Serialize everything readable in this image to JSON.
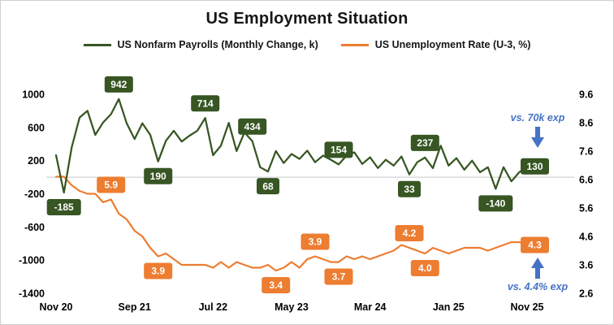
{
  "colors": {
    "payrolls": "#375623",
    "unemployment": "#ED7D31",
    "annotation_blue": "#4472C4"
  },
  "chart_data": {
    "type": "line",
    "title": "US Employment Situation",
    "legend_position": "top",
    "grid": "zero-line-only",
    "zero_line_value": 0,
    "x_axis": {
      "unit": "month",
      "tick_labels": [
        "Nov 20",
        "Sep 21",
        "Jul 22",
        "May 23",
        "Mar 24",
        "Jan 25",
        "Nov 25"
      ],
      "tick_indices": [
        0,
        10,
        20,
        30,
        40,
        50,
        60
      ]
    },
    "left_axis": {
      "tick_labels": [
        "1000",
        "600",
        "200",
        "-200",
        "-600",
        "-1000",
        "-1400"
      ],
      "tick_values": [
        1000,
        600,
        200,
        -200,
        -600,
        -1000,
        -1400
      ],
      "range": [
        -1400,
        1000
      ]
    },
    "right_axis": {
      "tick_labels": [
        "9.6",
        "8.6",
        "7.6",
        "6.6",
        "5.6",
        "4.6",
        "3.6",
        "2.6"
      ],
      "tick_values": [
        9.6,
        8.6,
        7.6,
        6.6,
        5.6,
        4.6,
        3.6,
        2.6
      ],
      "range": [
        2.6,
        9.6
      ]
    },
    "series": [
      {
        "name": "US Nonfarm Payrolls (Monthly Change, k)",
        "color": "#375623",
        "axis": "left",
        "values": [
          265,
          -185,
          360,
          720,
          800,
          510,
          660,
          760,
          942,
          650,
          460,
          650,
          510,
          190,
          440,
          560,
          430,
          500,
          560,
          714,
          265,
          380,
          655,
          315,
          540,
          434,
          120,
          68,
          315,
          170,
          280,
          220,
          320,
          180,
          260,
          210,
          154,
          260,
          300,
          160,
          240,
          110,
          210,
          140,
          250,
          33,
          180,
          237,
          110,
          380,
          140,
          230,
          90,
          200,
          60,
          120,
          -140,
          120,
          -50,
          60,
          130
        ]
      },
      {
        "name": "US Unemployment Rate (U-3, %)",
        "color": "#ED7D31",
        "axis": "right",
        "values": [
          6.7,
          6.7,
          6.4,
          6.2,
          6.1,
          6.1,
          5.8,
          5.9,
          5.4,
          5.2,
          4.8,
          4.6,
          4.2,
          3.9,
          4.0,
          3.8,
          3.6,
          3.6,
          3.6,
          3.6,
          3.5,
          3.7,
          3.5,
          3.7,
          3.6,
          3.5,
          3.5,
          3.6,
          3.4,
          3.5,
          3.7,
          3.5,
          3.8,
          3.9,
          3.8,
          3.7,
          3.7,
          3.9,
          3.8,
          3.9,
          3.8,
          3.9,
          4.0,
          4.1,
          4.3,
          4.2,
          4.1,
          4.0,
          4.2,
          4.1,
          4.0,
          4.1,
          4.2,
          4.2,
          4.2,
          4.1,
          4.2,
          4.3,
          4.4,
          4.4,
          4.3
        ]
      }
    ],
    "point_labels": [
      {
        "series": 0,
        "index": 1,
        "text": "-185",
        "position": "below"
      },
      {
        "series": 0,
        "index": 8,
        "text": "942",
        "position": "above"
      },
      {
        "series": 0,
        "index": 13,
        "text": "190",
        "position": "below"
      },
      {
        "series": 0,
        "index": 19,
        "text": "714",
        "position": "above"
      },
      {
        "series": 0,
        "index": 25,
        "text": "434",
        "position": "above"
      },
      {
        "series": 0,
        "index": 27,
        "text": "68",
        "position": "below"
      },
      {
        "series": 0,
        "index": 36,
        "text": "154",
        "position": "above"
      },
      {
        "series": 0,
        "index": 45,
        "text": "33",
        "position": "below"
      },
      {
        "series": 0,
        "index": 47,
        "text": "237",
        "position": "above"
      },
      {
        "series": 0,
        "index": 56,
        "text": "-140",
        "position": "below"
      },
      {
        "series": 0,
        "index": 60,
        "text": "130",
        "position": "end"
      },
      {
        "series": 1,
        "index": 7,
        "text": "5.9",
        "position": "above"
      },
      {
        "series": 1,
        "index": 13,
        "text": "3.9",
        "position": "below"
      },
      {
        "series": 1,
        "index": 28,
        "text": "3.4",
        "position": "below"
      },
      {
        "series": 1,
        "index": 33,
        "text": "3.9",
        "position": "above"
      },
      {
        "series": 1,
        "index": 36,
        "text": "3.7",
        "position": "below"
      },
      {
        "series": 1,
        "index": 45,
        "text": "4.2",
        "position": "above"
      },
      {
        "series": 1,
        "index": 47,
        "text": "4.0",
        "position": "below"
      },
      {
        "series": 1,
        "index": 60,
        "text": "4.3",
        "position": "end"
      }
    ],
    "annotations": [
      {
        "id": "payrolls-expectation",
        "text": "vs. 70k exp",
        "arrow": "down"
      },
      {
        "id": "unemployment-expectation",
        "text": "vs. 4.4% exp",
        "arrow": "up"
      }
    ]
  }
}
